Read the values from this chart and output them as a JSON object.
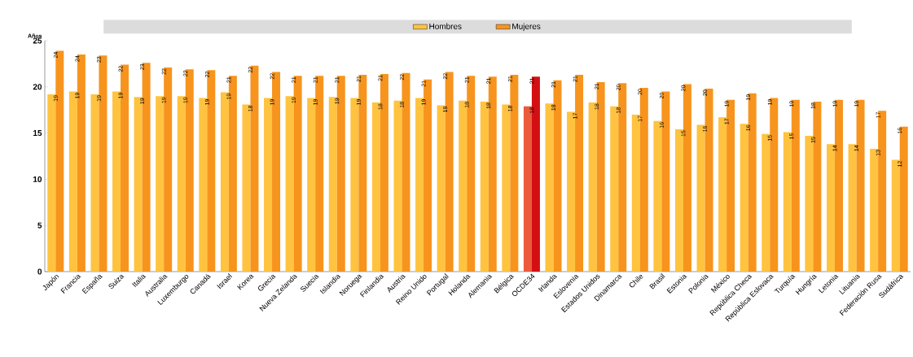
{
  "chart_data": {
    "type": "bar",
    "ylabel": "Años",
    "categories": [
      "Japón",
      "Francia",
      "España",
      "Suiza",
      "Italia",
      "Australia",
      "Luxemburgo",
      "Canadá",
      "Israel",
      "Korea",
      "Grecia",
      "Nueva Zelanda",
      "Suecia",
      "Islandia",
      "Noruega",
      "Finlandia",
      "Austria",
      "Reino Unido",
      "Portugal",
      "Holanda",
      "Alemania",
      "Bélgica",
      "OCDE34",
      "Irlanda",
      "Eslovenia",
      "Estados Unidos",
      "Dinamarca",
      "Chile",
      "Brasil",
      "Estonia",
      "Polonia",
      "México",
      "República Checa",
      "República Eslovaca",
      "Turquía",
      "Hungría",
      "Letonia",
      "Lituania",
      "Federación Rusa",
      "Sudáfrica"
    ],
    "series": [
      {
        "name": "Hombres",
        "color": "#ffc340",
        "colors": [
          "#ffc340",
          "#ffc340",
          "#ffc340",
          "#ffc340",
          "#ffc340",
          "#ffc340",
          "#ffc340",
          "#ffc340",
          "#ffc340",
          "#ffc340",
          "#ffc340",
          "#ffc340",
          "#ffc340",
          "#ffc340",
          "#ffc340",
          "#ffc340",
          "#ffc340",
          "#ffc340",
          "#ffc340",
          "#ffc340",
          "#ffc340",
          "#ffc340",
          "#ec5a3c",
          "#ffc340",
          "#ffc340",
          "#ffc340",
          "#ffc340",
          "#ffc340",
          "#ffc340",
          "#ffc340",
          "#ffc340",
          "#ffc340",
          "#ffc340",
          "#ffc340",
          "#ffc340",
          "#ffc340",
          "#ffc340",
          "#ffc340",
          "#ffc340",
          "#ffc340"
        ],
        "values": [
          19.2,
          19.5,
          19.2,
          19.5,
          18.9,
          19.0,
          19.0,
          18.8,
          19.4,
          18.1,
          18.8,
          19.0,
          18.8,
          18.9,
          18.8,
          18.3,
          18.5,
          18.8,
          18.0,
          18.5,
          18.4,
          18.1,
          17.9,
          18.2,
          17.3,
          18.3,
          17.9,
          17.0,
          16.3,
          15.4,
          15.9,
          16.7,
          16.0,
          14.9,
          15.1,
          14.7,
          13.8,
          13.8,
          13.3,
          12.1
        ],
        "value_labels": [
          "19",
          "19",
          "19",
          "19",
          "19",
          "19",
          "19",
          "19",
          "19",
          "18",
          "19",
          "19",
          "19",
          "19",
          "19",
          "18",
          "18",
          "19",
          "18",
          "18",
          "18",
          "18",
          "18",
          "18",
          "17",
          "18",
          "18",
          "17",
          "16",
          "15",
          "16",
          "17",
          "16",
          "15",
          "15",
          "15",
          "14",
          "14",
          "13",
          "12"
        ]
      },
      {
        "name": "Mujeres",
        "color": "#f7941d",
        "colors": [
          "#f7941d",
          "#f7941d",
          "#f7941d",
          "#f7941d",
          "#f7941d",
          "#f7941d",
          "#f7941d",
          "#f7941d",
          "#f7941d",
          "#f7941d",
          "#f7941d",
          "#f7941d",
          "#f7941d",
          "#f7941d",
          "#f7941d",
          "#f7941d",
          "#f7941d",
          "#f7941d",
          "#f7941d",
          "#f7941d",
          "#f7941d",
          "#f7941d",
          "#d40f14",
          "#f7941d",
          "#f7941d",
          "#f7941d",
          "#f7941d",
          "#f7941d",
          "#f7941d",
          "#f7941d",
          "#f7941d",
          "#f7941d",
          "#f7941d",
          "#f7941d",
          "#f7941d",
          "#f7941d",
          "#f7941d",
          "#f7941d",
          "#f7941d",
          "#f7941d"
        ],
        "values": [
          23.9,
          23.5,
          23.4,
          22.4,
          22.6,
          22.1,
          21.9,
          21.8,
          21.2,
          22.3,
          21.6,
          21.2,
          21.2,
          21.2,
          21.3,
          21.4,
          21.5,
          20.8,
          21.6,
          21.2,
          21.1,
          21.3,
          21.1,
          20.7,
          21.3,
          20.5,
          20.4,
          19.9,
          19.5,
          20.3,
          19.8,
          18.6,
          19.3,
          18.8,
          18.6,
          18.4,
          18.6,
          18.6,
          17.4,
          15.7
        ],
        "value_labels": [
          "24",
          "24",
          "23",
          "22",
          "23",
          "22",
          "22",
          "22",
          "21",
          "22",
          "22",
          "21",
          "21",
          "21",
          "21",
          "21",
          "22",
          "21",
          "22",
          "21",
          "21",
          "21",
          "21",
          "21",
          "21",
          "21",
          "20",
          "20",
          "20",
          "20",
          "20",
          "19",
          "19",
          "19",
          "19",
          "18",
          "19",
          "19",
          "17",
          "16"
        ]
      }
    ],
    "ylim": [
      0,
      25
    ],
    "yticks": [
      0,
      5,
      10,
      15,
      20,
      25
    ],
    "legend": "top",
    "grid": false
  }
}
